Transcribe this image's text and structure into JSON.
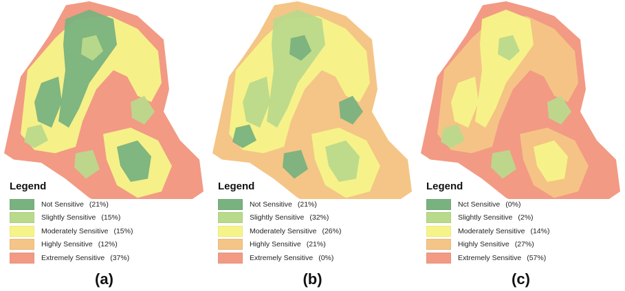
{
  "colors": {
    "not": "#79b27e",
    "slightly": "#b9d98b",
    "moderately": "#f6f489",
    "highly": "#f4c586",
    "extremely": "#f29a84"
  },
  "panels": [
    {
      "caption": "(a)",
      "legend_title": "Legend",
      "base_color": "extremely",
      "layers": [
        "moderately",
        "not",
        "slightly"
      ],
      "items": [
        {
          "label": "Not Sensitive",
          "percent": "(21%)",
          "color": "not"
        },
        {
          "label": "Slightly Sensitive",
          "percent": "(15%)",
          "color": "slightly"
        },
        {
          "label": "Moderately Sensitive",
          "percent": "(15%)",
          "color": "moderately"
        },
        {
          "label": "Highly Sensitive",
          "percent": "(12%)",
          "color": "highly"
        },
        {
          "label": "Extremely Sensitive",
          "percent": "(37%)",
          "color": "extremely"
        }
      ]
    },
    {
      "caption": "(b)",
      "legend_title": "Legend",
      "base_color": "highly",
      "layers": [
        "moderately",
        "slightly",
        "not"
      ],
      "items": [
        {
          "label": "Not Sensitive",
          "percent": "(21%)",
          "color": "not"
        },
        {
          "label": "Slightly Sensitive",
          "percent": "(32%)",
          "color": "slightly"
        },
        {
          "label": "Moderately Sensitive",
          "percent": "(26%)",
          "color": "moderately"
        },
        {
          "label": "Highly Sensitive",
          "percent": "(21%)",
          "color": "highly"
        },
        {
          "label": "Extremely Sensitive",
          "percent": "(0%)",
          "color": "extremely"
        }
      ]
    },
    {
      "caption": "(c)",
      "legend_title": "Legend",
      "base_color": "extremely",
      "layers": [
        "highly",
        "moderately",
        "slightly"
      ],
      "items": [
        {
          "label": "Nct Sensitive",
          "percent": "(0%)",
          "color": "not"
        },
        {
          "label": "Slightly Sensitive",
          "percent": "(2%)",
          "color": "slightly"
        },
        {
          "label": "Moderately Sensitive",
          "percent": "(14%)",
          "color": "moderately"
        },
        {
          "label": "Highly Sensitive",
          "percent": "(27%)",
          "color": "highly"
        },
        {
          "label": "Extremely Sensitive",
          "percent": "(57%)",
          "color": "extremely"
        }
      ]
    }
  ]
}
